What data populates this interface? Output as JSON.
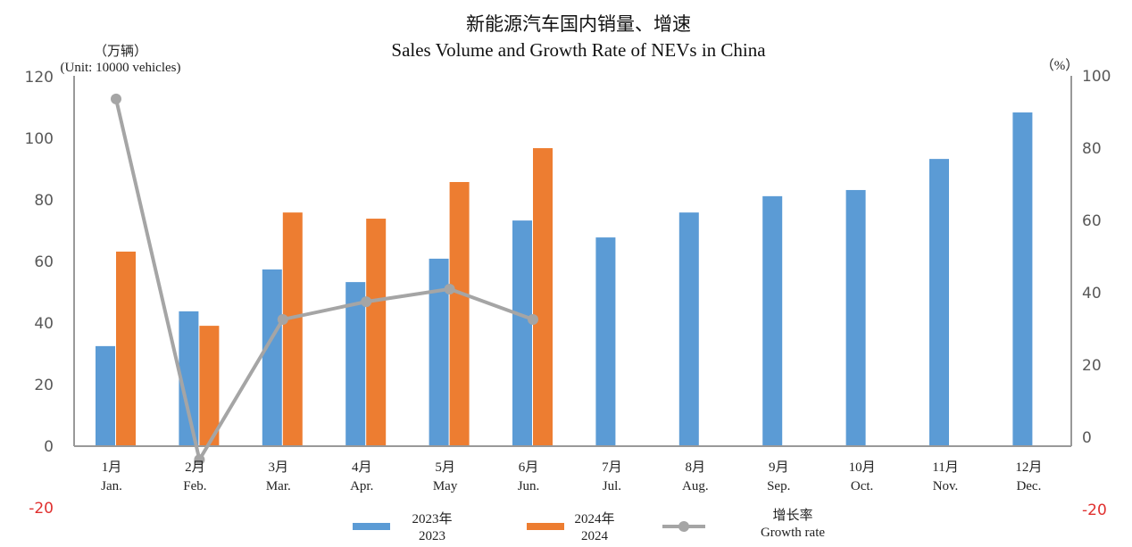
{
  "chart_data": {
    "type": "bar",
    "title_cn": "新能源汽车国内销量、增速",
    "title": "Sales Volume and Growth Rate of NEVs in China",
    "ylabel_cn": "（万辆）",
    "ylabel": "(Unit: 10000 vehicles)",
    "y2label": "（%）",
    "ylim": [
      -20,
      120
    ],
    "y2lim": [
      -20,
      100
    ],
    "yticks": [
      "-20",
      "0",
      "20",
      "40",
      "60",
      "80",
      "100",
      "120"
    ],
    "y2ticks": [
      "-20",
      "0",
      "20",
      "40",
      "60",
      "80",
      "100"
    ],
    "categories_cn": [
      "1月",
      "2月",
      "3月",
      "4月",
      "5月",
      "6月",
      "7月",
      "8月",
      "9月",
      "10月",
      "11月",
      "12月"
    ],
    "categories": [
      "Jan.",
      "Feb.",
      "Mar.",
      "Apr.",
      "May",
      "Jun.",
      "Jul.",
      "Aug.",
      "Sep.",
      "Oct.",
      "Nov.",
      "Dec."
    ],
    "series": [
      {
        "name_cn": "2023年",
        "name": "2023",
        "type": "bar",
        "axis": "left",
        "color": "#5b9bd5",
        "values": [
          32.5,
          43.8,
          57.4,
          53.3,
          60.9,
          73.3,
          67.8,
          75.9,
          81.2,
          83.2,
          93.3,
          108.4
        ]
      },
      {
        "name_cn": "2024年",
        "name": "2024",
        "type": "bar",
        "axis": "left",
        "color": "#ed7d31",
        "values": [
          63.2,
          39.1,
          75.9,
          73.9,
          85.8,
          96.8,
          null,
          null,
          null,
          null,
          null,
          null
        ]
      },
      {
        "name_cn": "增长率",
        "name": "Growth rate",
        "type": "line",
        "axis": "right",
        "color": "#a5a5a5",
        "values": [
          93.6,
          -6.2,
          32.6,
          37.5,
          41.0,
          32.6,
          null,
          null,
          null,
          null,
          null,
          null
        ]
      }
    ],
    "grid": false,
    "legend": "bottom"
  }
}
